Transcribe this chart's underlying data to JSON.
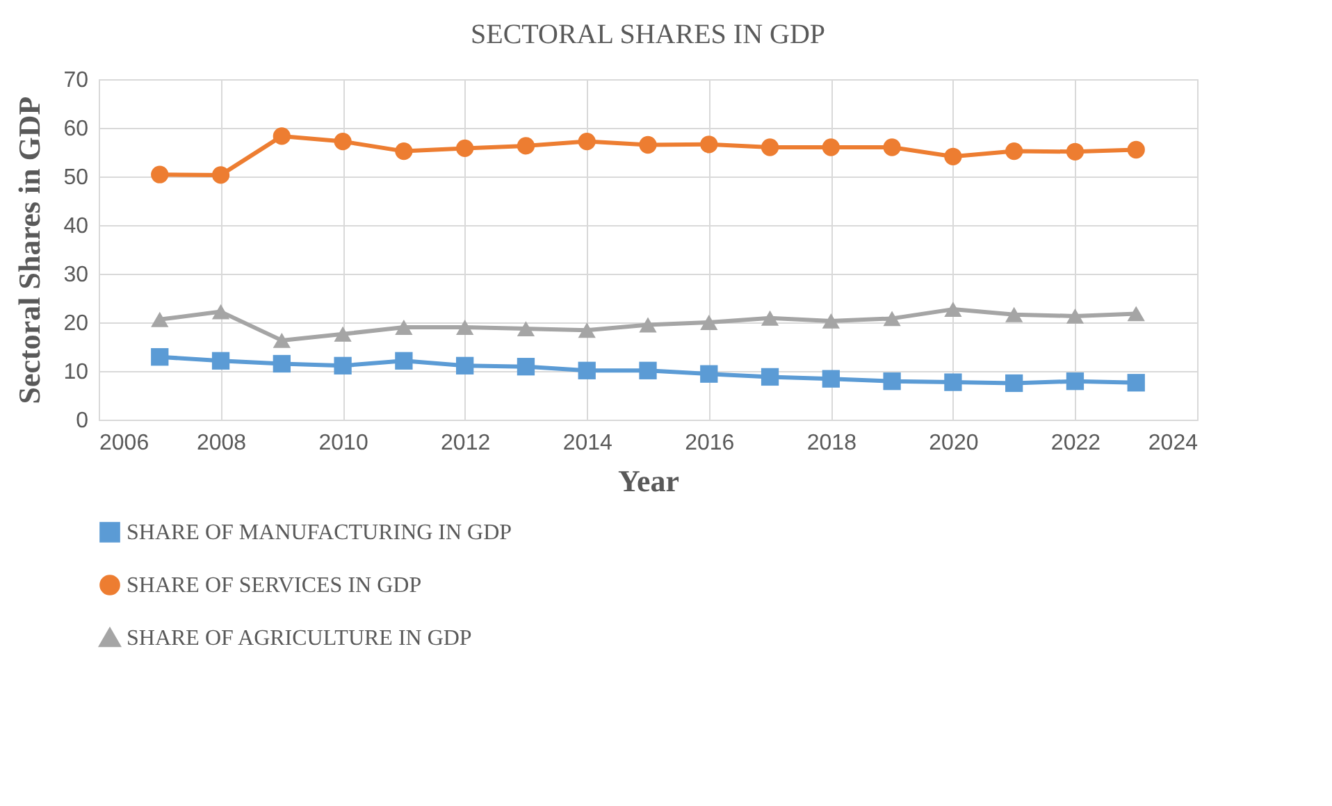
{
  "chart_data": {
    "type": "line",
    "title": "SECTORAL SHARES IN GDP",
    "xlabel": "Year",
    "ylabel": "Sectoral Shares in GDP",
    "x": [
      2007,
      2008,
      2009,
      2010,
      2011,
      2012,
      2013,
      2014,
      2015,
      2016,
      2017,
      2018,
      2019,
      2020,
      2021,
      2022,
      2023
    ],
    "series": [
      {
        "name": "SHARE OF MANUFACTURING IN GDP",
        "color": "#5b9bd5",
        "marker": "square",
        "values": [
          12.9,
          12.1,
          11.5,
          11.1,
          12.1,
          11.1,
          10.9,
          10.1,
          10.1,
          9.4,
          8.8,
          8.4,
          7.9,
          7.7,
          7.5,
          7.9,
          7.6
        ]
      },
      {
        "name": "SHARE OF SERVICES IN GDP",
        "color": "#ed7d31",
        "marker": "circle",
        "values": [
          50.4,
          50.3,
          58.3,
          57.2,
          55.2,
          55.8,
          56.3,
          57.2,
          56.5,
          56.6,
          56.0,
          56.0,
          56.0,
          54.1,
          55.2,
          55.1,
          55.5
        ]
      },
      {
        "name": "SHARE OF AGRICULTURE IN GDP",
        "color": "#a5a5a5",
        "marker": "triangle",
        "values": [
          20.6,
          22.2,
          16.3,
          17.6,
          19.0,
          19.0,
          18.7,
          18.4,
          19.5,
          20.0,
          20.9,
          20.3,
          20.8,
          22.7,
          21.6,
          21.3,
          21.8
        ]
      }
    ],
    "xlim": [
      2006,
      2024
    ],
    "xticks": [
      2006,
      2008,
      2010,
      2012,
      2014,
      2016,
      2018,
      2020,
      2022,
      2024
    ],
    "ylim": [
      0,
      70
    ],
    "yticks": [
      0,
      10,
      20,
      30,
      40,
      50,
      60,
      70
    ],
    "grid": true,
    "legend": "bottom",
    "line_style": "solid"
  }
}
